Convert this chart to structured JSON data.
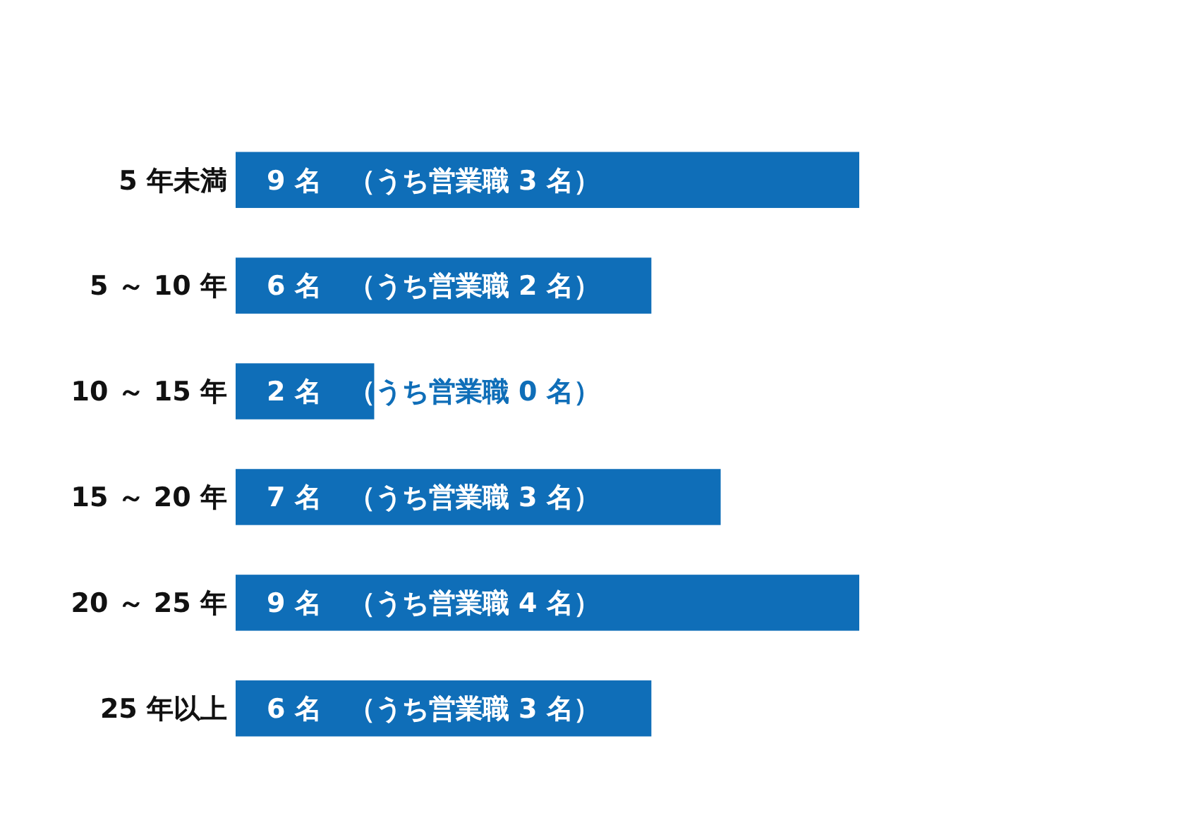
{
  "chart_data": {
    "type": "bar",
    "orientation": "horizontal",
    "categories": [
      "5 年未満",
      "5 ～ 10 年",
      "10 ～ 15 年",
      "15 ～ 20 年",
      "20 ～ 25 年",
      "25 年以上"
    ],
    "values": [
      9,
      6,
      2,
      7,
      9,
      6
    ],
    "color": "#0f6eb8",
    "value_labels": [
      "9 名　（うち営業職 3 名）",
      "6 名　（うち営業職 2 名）",
      "2 名　（うち営業職 0 名）",
      "7 名　（うち営業職 3 名）",
      "9 名　（うち営業職 4 名）",
      "6 名　（うち営業職 3 名）"
    ]
  }
}
